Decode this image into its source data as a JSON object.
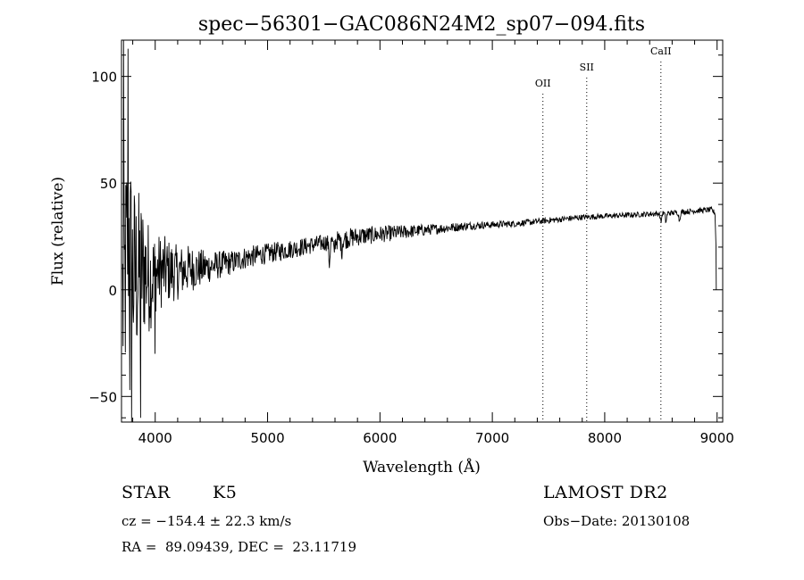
{
  "chart_data": {
    "type": "line",
    "title": "spec−56301−GAC086N24M2_sp07−094.fits",
    "xlabel": "Wavelength (Å)",
    "ylabel": "Flux (relative)",
    "xlim": [
      3700,
      9050
    ],
    "ylim": [
      -62,
      117
    ],
    "x_ticks": [
      4000,
      5000,
      6000,
      7000,
      8000,
      9000
    ],
    "x_tick_labels": [
      "4000",
      "5000",
      "6000",
      "7000",
      "8000",
      "9000"
    ],
    "y_ticks": [
      -50,
      0,
      50,
      100
    ],
    "y_tick_labels": [
      "−50",
      "0",
      "50",
      "100"
    ],
    "series": [
      {
        "points": [
          [
            3720,
            -5
          ],
          [
            3740,
            10
          ],
          [
            3760,
            30
          ],
          [
            3780,
            15
          ],
          [
            3800,
            5
          ],
          [
            3850,
            8
          ],
          [
            3900,
            10
          ],
          [
            3950,
            5
          ],
          [
            4000,
            8
          ],
          [
            4100,
            9
          ],
          [
            4200,
            8
          ],
          [
            4300,
            10
          ],
          [
            4400,
            10
          ],
          [
            4500,
            11
          ],
          [
            4600,
            12
          ],
          [
            4700,
            13
          ],
          [
            4800,
            15
          ],
          [
            4900,
            16
          ],
          [
            5000,
            17
          ],
          [
            5100,
            18
          ],
          [
            5200,
            19
          ],
          [
            5300,
            20
          ],
          [
            5400,
            21
          ],
          [
            5500,
            22
          ],
          [
            5600,
            23
          ],
          [
            5700,
            24
          ],
          [
            5800,
            25
          ],
          [
            5900,
            25.5
          ],
          [
            6000,
            26
          ],
          [
            6200,
            27
          ],
          [
            6400,
            28
          ],
          [
            6600,
            29
          ],
          [
            6800,
            30
          ],
          [
            7000,
            30.5
          ],
          [
            7200,
            31
          ],
          [
            7400,
            32
          ],
          [
            7600,
            33
          ],
          [
            7800,
            34
          ],
          [
            8000,
            34.5
          ],
          [
            8200,
            35
          ],
          [
            8400,
            35.5
          ],
          [
            8600,
            36
          ],
          [
            8800,
            37
          ],
          [
            8950,
            37.5
          ],
          [
            8980,
            36
          ]
        ],
        "noise": [
          [
            3700,
            35
          ],
          [
            3800,
            30
          ],
          [
            3900,
            20
          ],
          [
            4000,
            12
          ],
          [
            4100,
            10
          ],
          [
            4200,
            8
          ],
          [
            4300,
            7
          ],
          [
            4500,
            4.5
          ],
          [
            4700,
            3.5
          ],
          [
            5000,
            3
          ],
          [
            5500,
            2.5
          ],
          [
            5700,
            3
          ],
          [
            6000,
            2.5
          ],
          [
            6500,
            1.5
          ],
          [
            7000,
            1
          ],
          [
            8000,
            0.8
          ],
          [
            9000,
            0.8
          ]
        ],
        "features": [
          [
            5550,
            10
          ],
          [
            5590,
            5
          ],
          [
            5660,
            5
          ],
          [
            8500,
            4
          ],
          [
            8545,
            4
          ],
          [
            8665,
            4
          ]
        ],
        "spikes": [
          [
            3720,
            118
          ],
          [
            3760,
            113
          ],
          [
            3790,
            -65
          ],
          [
            3775,
            -47
          ],
          [
            3870,
            -60
          ],
          [
            4000,
            -30
          ]
        ]
      }
    ],
    "line_markers": [
      {
        "label": "OII",
        "x": 7450
      },
      {
        "label": "SII",
        "x": 7840
      },
      {
        "label": "CaII",
        "x": 8500
      }
    ]
  },
  "info": {
    "object_class": "STAR",
    "subclass": "K5",
    "survey": "LAMOST DR2",
    "cz": "cz = −154.4 ± 22.3 km/s",
    "obs_date": "Obs−Date: 20130108",
    "coords": "RA =  89.09439, DEC =  23.11719"
  }
}
